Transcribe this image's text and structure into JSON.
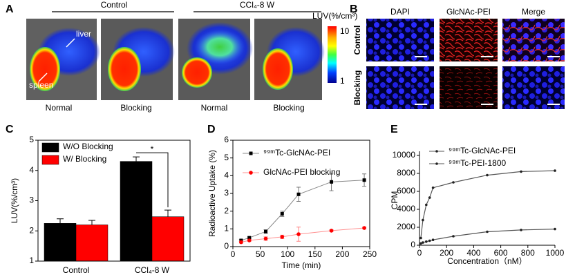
{
  "figure": {
    "panel_a": {
      "label": "A",
      "groups": [
        "Control",
        "CCl₄-8 W"
      ],
      "colorbar_label": "LUV(%/cm³)",
      "colorbar_ticks": [
        10,
        1
      ],
      "image_labels": [
        "Normal",
        "Blocking",
        "Normal",
        "Blocking"
      ],
      "annotations": [
        "liver",
        "spleen"
      ]
    },
    "panel_b": {
      "label": "B",
      "columns": [
        "DAPI",
        "GlcNAc-PEI",
        "Merge"
      ],
      "rows": [
        "Control",
        "Blocking"
      ]
    }
  },
  "chart_data": [
    {
      "label": "C",
      "type": "bar",
      "categories": [
        "Control",
        "CCl₄-8 W"
      ],
      "series": [
        {
          "name": "W/O Blocking",
          "color": "#000000",
          "values": [
            2.25,
            4.3
          ],
          "errors": [
            0.15,
            0.15
          ]
        },
        {
          "name": "W/  Blocking",
          "color": "#ff0000",
          "values": [
            2.2,
            2.47
          ],
          "errors": [
            0.15,
            0.22
          ]
        }
      ],
      "ylabel": "LUV(%/cm³)",
      "ylim": [
        1,
        5
      ],
      "yticks": [
        1,
        2,
        3,
        4,
        5
      ],
      "annotations": [
        "*"
      ],
      "legend": "upper left"
    },
    {
      "label": "D",
      "type": "line",
      "x": [
        15,
        30,
        60,
        90,
        120,
        180,
        240
      ],
      "series": [
        {
          "name": "⁹⁹ᵐTc-GlcNAc-PEI",
          "color": "#000000",
          "marker": "square",
          "values": [
            0.35,
            0.5,
            0.85,
            1.85,
            2.95,
            3.65,
            3.75
          ],
          "errors": [
            0.05,
            0.05,
            0.1,
            0.15,
            0.4,
            0.5,
            0.35
          ]
        },
        {
          "name": "GlcNAc-PEI blocking",
          "color": "#ff0000",
          "marker": "circle",
          "values": [
            0.25,
            0.35,
            0.45,
            0.55,
            0.7,
            0.9,
            1.05
          ],
          "errors": [
            0.05,
            0.05,
            0.1,
            0.1,
            0.4,
            0.05,
            0.05
          ]
        }
      ],
      "xlabel": "Time (min)",
      "ylabel": "Radioactive Uptake (%)",
      "xlim": [
        0,
        250
      ],
      "xticks": [
        0,
        50,
        100,
        150,
        200,
        250
      ],
      "ylim": [
        0,
        6
      ],
      "yticks": [
        0,
        1,
        2,
        3,
        4,
        5,
        6
      ],
      "legend": "upper left"
    },
    {
      "label": "E",
      "type": "scatter",
      "x": [
        10,
        25,
        50,
        75,
        100,
        250,
        500,
        750,
        1000
      ],
      "series": [
        {
          "name": "⁹⁹ᵐTc-GlcNAc-PEI",
          "color": "#222222",
          "values": [
            800,
            2800,
            4500,
            5300,
            6400,
            7000,
            7800,
            8200,
            8300
          ]
        },
        {
          "name": "⁹⁹ᵐTc-PEI-1800",
          "color": "#222222",
          "values": [
            200,
            300,
            400,
            500,
            600,
            1000,
            1500,
            1700,
            1800
          ]
        }
      ],
      "xlabel": "Concentration（nM）",
      "ylabel": "CPM",
      "xlim": [
        0,
        1000
      ],
      "xticks": [
        0,
        200,
        400,
        600,
        800,
        1000
      ],
      "ylim": [
        0,
        10000
      ],
      "yticks": [
        0,
        2000,
        4000,
        6000,
        8000,
        10000
      ],
      "legend": "upper left"
    }
  ]
}
